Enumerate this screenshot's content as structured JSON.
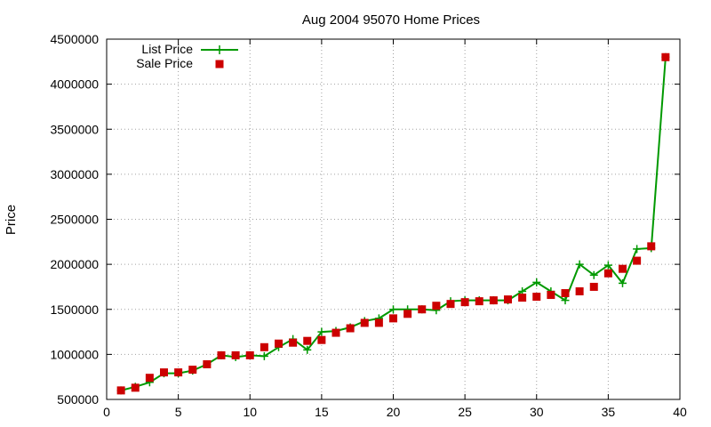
{
  "chart_data": {
    "type": "line",
    "title": "Aug 2004 95070 Home Prices",
    "xlabel": "",
    "ylabel": "Price",
    "xlim": [
      0,
      40
    ],
    "ylim": [
      500000,
      4500000
    ],
    "xticks": [
      0,
      5,
      10,
      15,
      20,
      25,
      30,
      35,
      40
    ],
    "yticks": [
      500000,
      1000000,
      1500000,
      2000000,
      2500000,
      3000000,
      3500000,
      4000000,
      4500000
    ],
    "grid": true,
    "legend_position": "top-left",
    "series": [
      {
        "name": "List Price",
        "style": "lines+points",
        "marker": "plus",
        "color": "#009900",
        "x": [
          1,
          2,
          3,
          4,
          5,
          6,
          7,
          8,
          9,
          10,
          11,
          12,
          13,
          14,
          15,
          16,
          17,
          18,
          19,
          20,
          21,
          22,
          23,
          24,
          25,
          26,
          27,
          28,
          29,
          30,
          31,
          32,
          33,
          34,
          35,
          36,
          37,
          38,
          39
        ],
        "y": [
          600000,
          640000,
          690000,
          790000,
          790000,
          820000,
          890000,
          990000,
          970000,
          990000,
          980000,
          1080000,
          1170000,
          1050000,
          1250000,
          1260000,
          1300000,
          1370000,
          1400000,
          1500000,
          1500000,
          1500000,
          1490000,
          1590000,
          1600000,
          1600000,
          1600000,
          1600000,
          1700000,
          1800000,
          1700000,
          1600000,
          2000000,
          1880000,
          1990000,
          1790000,
          2170000,
          2180000,
          4300000
        ]
      },
      {
        "name": "Sale Price",
        "style": "points",
        "marker": "square",
        "color": "#cc0000",
        "x": [
          1,
          2,
          3,
          4,
          5,
          6,
          7,
          8,
          9,
          10,
          11,
          12,
          13,
          14,
          15,
          16,
          17,
          18,
          19,
          20,
          21,
          22,
          23,
          24,
          25,
          26,
          27,
          28,
          29,
          30,
          31,
          32,
          33,
          34,
          35,
          36,
          37,
          38,
          39
        ],
        "y": [
          600000,
          630000,
          740000,
          800000,
          800000,
          830000,
          890000,
          990000,
          990000,
          990000,
          1080000,
          1120000,
          1130000,
          1150000,
          1160000,
          1240000,
          1290000,
          1350000,
          1350000,
          1400000,
          1450000,
          1500000,
          1540000,
          1560000,
          1580000,
          1590000,
          1600000,
          1610000,
          1630000,
          1640000,
          1660000,
          1680000,
          1700000,
          1750000,
          1900000,
          1950000,
          2040000,
          2200000,
          4300000
        ]
      }
    ]
  }
}
